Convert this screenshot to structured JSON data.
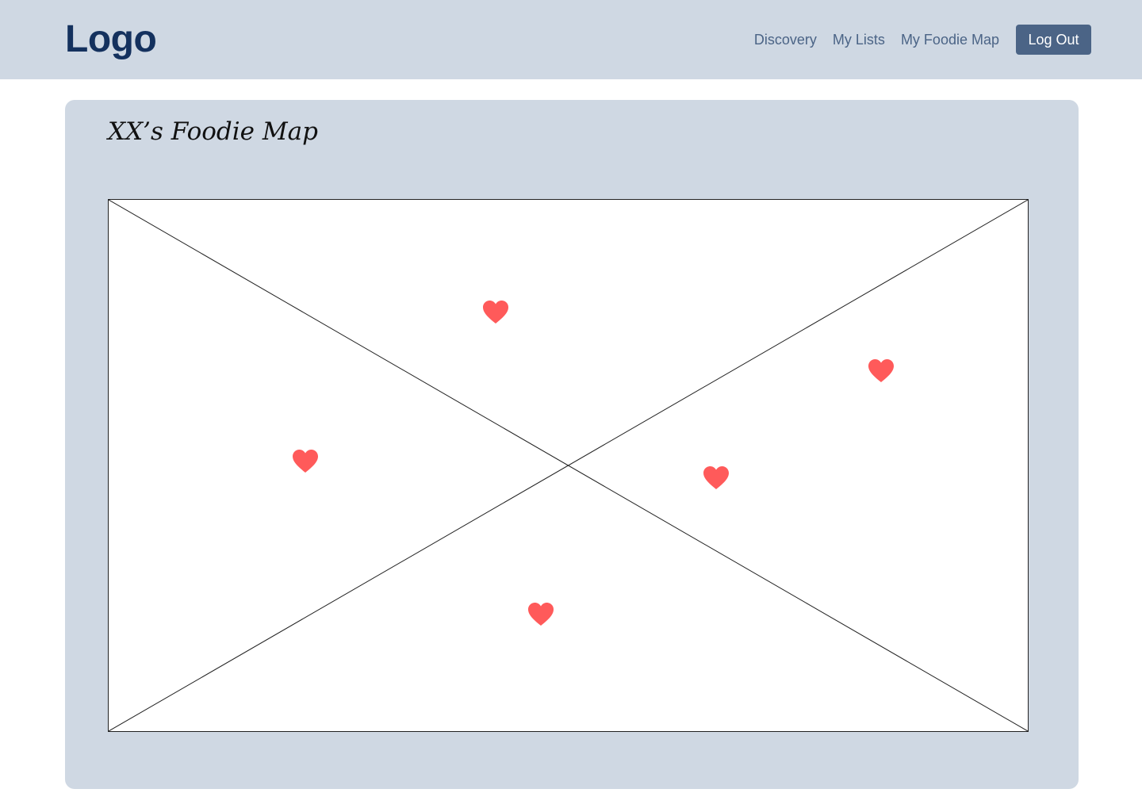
{
  "header": {
    "logo": "Logo",
    "nav": {
      "discovery": "Discovery",
      "my_lists": "My Lists",
      "my_foodie_map": "My Foodie Map",
      "log_out": "Log Out"
    }
  },
  "map": {
    "title": "XX’s Foodie Map",
    "pin_icon": "heart-icon",
    "pin_color": "#ff5a5a",
    "pin_count": 5
  },
  "colors": {
    "header_bg": "#cfd8e3",
    "logo": "#14315e",
    "nav_text": "#4b6486",
    "button_bg": "#4b6486"
  }
}
